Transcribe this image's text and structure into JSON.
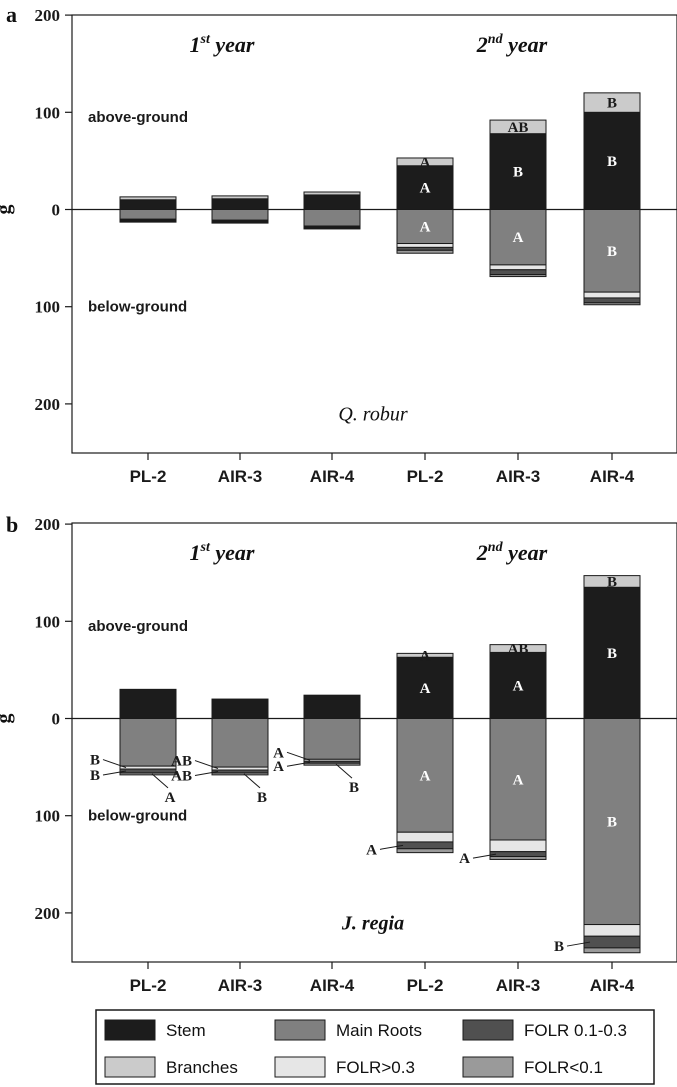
{
  "colors": {
    "stem": "#1c1c1c",
    "branches": "#cbcbcb",
    "main_roots": "#808080",
    "folr_0103": "#505050",
    "folr_gt03": "#e6e6e6",
    "folr_lt01": "#9a9a9a"
  },
  "legend": [
    {
      "key": "stem",
      "label": "Stem"
    },
    {
      "key": "main_roots",
      "label": "Main Roots"
    },
    {
      "key": "folr_0103",
      "label": "FOLR 0.1-0.3"
    },
    {
      "key": "branches",
      "label": "Branches"
    },
    {
      "key": "folr_gt03",
      "label": "FOLR>0.3"
    },
    {
      "key": "folr_lt01",
      "label": "FOLR<0.1"
    }
  ],
  "chart_data": [
    {
      "type": "bar",
      "panel": "a",
      "species": "Q. robur",
      "ylabel": "g",
      "above_label": "above-ground",
      "below_label": "below-ground",
      "year_labels": [
        {
          "base": "1",
          "sup": "st",
          "rest": " year"
        },
        {
          "base": "2",
          "sup": "nd",
          "rest": " year"
        }
      ],
      "ylim": [
        -250,
        200
      ],
      "yticks": [
        200,
        100,
        0,
        100,
        200
      ],
      "ytick_values": [
        200,
        100,
        0,
        -100,
        -200
      ],
      "categories": [
        "PL-2",
        "AIR-3",
        "AIR-4",
        "PL-2",
        "AIR-3",
        "AIR-4"
      ],
      "above_series": [
        {
          "name": "Stem",
          "key": "stem",
          "values": [
            10,
            11,
            15,
            45,
            78,
            100
          ]
        },
        {
          "name": "Branches",
          "key": "branches",
          "values": [
            3,
            3,
            3,
            8,
            14,
            20
          ]
        }
      ],
      "below_series": [
        {
          "name": "Main Roots",
          "key": "main_roots",
          "values": [
            10,
            11,
            17,
            35,
            57,
            85
          ]
        },
        {
          "name": "FOLR>0.3",
          "key": "folr_gt03",
          "values": [
            1,
            1,
            1,
            4,
            5,
            6
          ]
        },
        {
          "name": "FOLR 0.1-0.3",
          "key": "folr_0103",
          "values": [
            1,
            1,
            1,
            3,
            5,
            5
          ]
        },
        {
          "name": "FOLR<0.1",
          "key": "folr_lt01",
          "values": [
            1,
            1,
            1,
            3,
            2,
            2
          ]
        }
      ],
      "sig_labels": [
        {
          "bar": 3,
          "segment": "branches",
          "side": "above",
          "text": "A",
          "color": "dark"
        },
        {
          "bar": 4,
          "segment": "branches",
          "side": "above",
          "text": "AB",
          "color": "dark"
        },
        {
          "bar": 5,
          "segment": "branches",
          "side": "above",
          "text": "B",
          "color": "dark"
        },
        {
          "bar": 3,
          "segment": "stem",
          "side": "above",
          "text": "A",
          "color": "light"
        },
        {
          "bar": 4,
          "segment": "stem",
          "side": "above",
          "text": "B",
          "color": "light"
        },
        {
          "bar": 5,
          "segment": "stem",
          "side": "above",
          "text": "B",
          "color": "light"
        },
        {
          "bar": 3,
          "segment": "main_roots",
          "side": "below",
          "text": "A",
          "color": "light"
        },
        {
          "bar": 4,
          "segment": "main_roots",
          "side": "below",
          "text": "A",
          "color": "light"
        },
        {
          "bar": 5,
          "segment": "main_roots",
          "side": "below",
          "text": "B",
          "color": "light"
        }
      ],
      "callouts": []
    },
    {
      "type": "bar",
      "panel": "b",
      "species": "J. regia",
      "ylabel": "g",
      "above_label": "above-ground",
      "below_label": "below-ground",
      "year_labels": [
        {
          "base": "1",
          "sup": "st",
          "rest": " year"
        },
        {
          "base": "2",
          "sup": "nd",
          "rest": " year"
        }
      ],
      "ylim": [
        -250,
        200
      ],
      "yticks": [
        200,
        100,
        0,
        100,
        200
      ],
      "ytick_values": [
        200,
        100,
        0,
        -100,
        -200
      ],
      "categories": [
        "PL-2",
        "AIR-3",
        "AIR-4",
        "PL-2",
        "AIR-3",
        "AIR-4"
      ],
      "above_series": [
        {
          "name": "Stem",
          "key": "stem",
          "values": [
            30,
            20,
            24,
            63,
            68,
            135
          ]
        },
        {
          "name": "Branches",
          "key": "branches",
          "values": [
            0,
            0,
            0,
            4,
            8,
            12
          ]
        }
      ],
      "below_series": [
        {
          "name": "Main Roots",
          "key": "main_roots",
          "values": [
            49,
            50,
            42,
            117,
            125,
            212
          ]
        },
        {
          "name": "FOLR>0.3",
          "key": "folr_gt03",
          "values": [
            3,
            3,
            2,
            10,
            12,
            12
          ]
        },
        {
          "name": "FOLR 0.1-0.3",
          "key": "folr_0103",
          "values": [
            4,
            3,
            2,
            7,
            5,
            12
          ]
        },
        {
          "name": "FOLR<0.1",
          "key": "folr_lt01",
          "values": [
            2,
            2,
            2,
            4,
            3,
            5
          ]
        }
      ],
      "sig_labels": [
        {
          "bar": 3,
          "segment": "branches",
          "side": "above",
          "text": "A",
          "color": "dark"
        },
        {
          "bar": 4,
          "segment": "branches",
          "side": "above",
          "text": "AB",
          "color": "dark"
        },
        {
          "bar": 5,
          "segment": "branches",
          "side": "above",
          "text": "B",
          "color": "dark"
        },
        {
          "bar": 3,
          "segment": "stem",
          "side": "above",
          "text": "A",
          "color": "light"
        },
        {
          "bar": 4,
          "segment": "stem",
          "side": "above",
          "text": "A",
          "color": "light"
        },
        {
          "bar": 5,
          "segment": "stem",
          "side": "above",
          "text": "B",
          "color": "light"
        },
        {
          "bar": 3,
          "segment": "main_roots",
          "side": "below",
          "text": "A",
          "color": "light"
        },
        {
          "bar": 4,
          "segment": "main_roots",
          "side": "below",
          "text": "A",
          "color": "light"
        },
        {
          "bar": 5,
          "segment": "main_roots",
          "side": "below",
          "text": "B",
          "color": "light"
        }
      ],
      "callouts": [
        {
          "bar": 0,
          "segment": "folr_gt03",
          "side": "left",
          "text": "B"
        },
        {
          "bar": 0,
          "segment": "folr_0103",
          "side": "left",
          "text": "B"
        },
        {
          "bar": 0,
          "segment": "folr_lt01",
          "side": "right",
          "text": "A"
        },
        {
          "bar": 1,
          "segment": "folr_gt03",
          "side": "left",
          "text": "AB"
        },
        {
          "bar": 1,
          "segment": "folr_0103",
          "side": "left",
          "text": "AB"
        },
        {
          "bar": 1,
          "segment": "folr_lt01",
          "side": "right",
          "text": "B"
        },
        {
          "bar": 2,
          "segment": "folr_gt03",
          "side": "left",
          "text": "A"
        },
        {
          "bar": 2,
          "segment": "folr_0103",
          "side": "left",
          "text": "A"
        },
        {
          "bar": 2,
          "segment": "folr_lt01",
          "side": "right",
          "text": "B"
        },
        {
          "bar": 3,
          "segment": "folr_0103",
          "side": "left",
          "text": "A"
        },
        {
          "bar": 4,
          "segment": "folr_0103",
          "side": "left",
          "text": "A"
        },
        {
          "bar": 5,
          "segment": "folr_0103",
          "side": "left",
          "text": "B"
        }
      ]
    }
  ]
}
